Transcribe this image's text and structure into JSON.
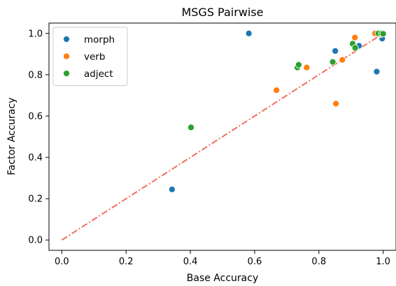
{
  "chart_data": {
    "type": "scatter",
    "title": "MSGS Pairwise",
    "xlabel": "Base Accuracy",
    "ylabel": "Factor Accuracy",
    "xlim": [
      -0.04,
      1.04
    ],
    "ylim": [
      -0.05,
      1.05
    ],
    "xticks": [
      "0.0",
      "0.2",
      "0.4",
      "0.6",
      "0.8",
      "1.0"
    ],
    "yticks": [
      "0.0",
      "0.2",
      "0.4",
      "0.6",
      "0.8",
      "1.0"
    ],
    "grid": false,
    "legend_position": "top-left",
    "reference_line": {
      "style": "dash-dot",
      "color": "#f07060",
      "from": [
        0,
        0
      ],
      "to": [
        1,
        1
      ]
    },
    "series": [
      {
        "name": "morph",
        "color": "#1f77b4",
        "points": [
          [
            0.343,
            0.245
          ],
          [
            0.582,
            1.0
          ],
          [
            0.851,
            0.915
          ],
          [
            0.925,
            0.94
          ],
          [
            0.98,
            0.815
          ],
          [
            0.997,
            0.975
          ]
        ]
      },
      {
        "name": "verb",
        "color": "#ff7f0e",
        "points": [
          [
            0.668,
            0.725
          ],
          [
            0.762,
            0.835
          ],
          [
            0.853,
            0.66
          ],
          [
            0.873,
            0.872
          ],
          [
            0.912,
            0.98
          ],
          [
            0.975,
            1.0
          ],
          [
            0.99,
            0.995
          ]
        ]
      },
      {
        "name": "adject",
        "color": "#2ca02c",
        "points": [
          [
            0.402,
            0.545
          ],
          [
            0.733,
            0.835
          ],
          [
            0.737,
            0.848
          ],
          [
            0.843,
            0.862
          ],
          [
            0.905,
            0.95
          ],
          [
            0.913,
            0.93
          ],
          [
            0.985,
            1.0
          ],
          [
            0.995,
            1.0
          ],
          [
            1.0,
            0.998
          ]
        ]
      }
    ]
  }
}
